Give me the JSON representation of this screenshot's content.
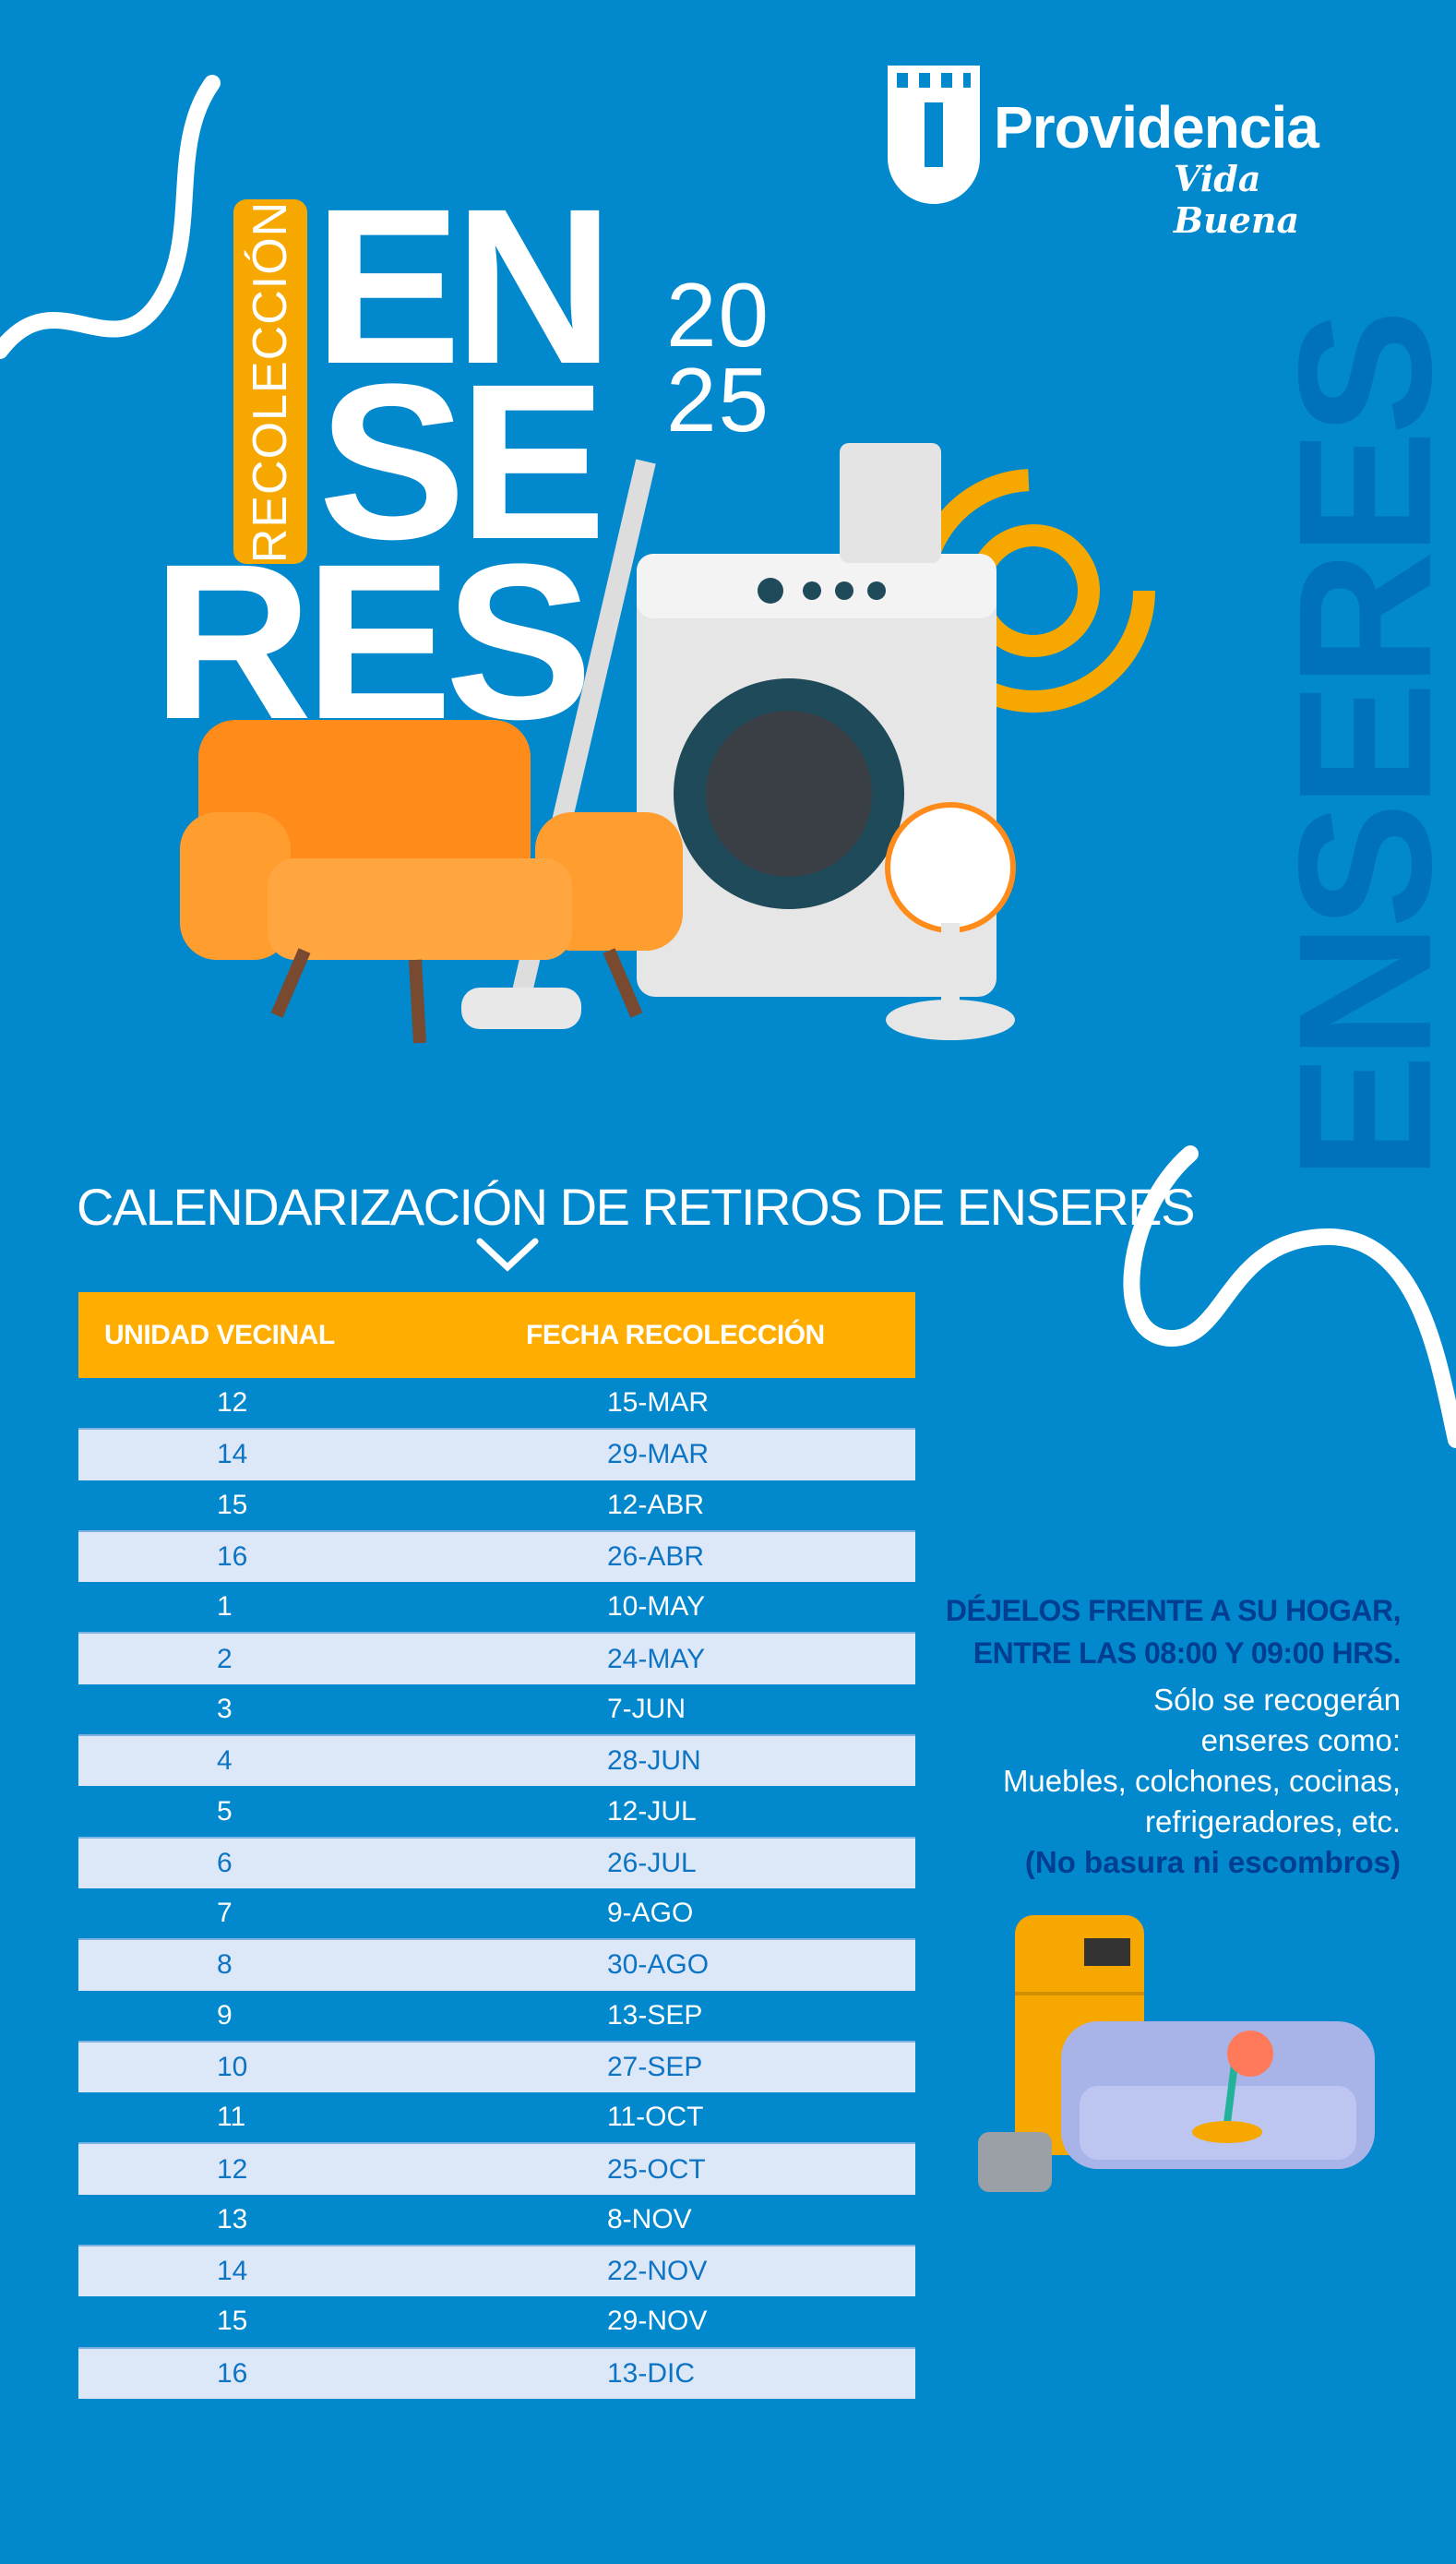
{
  "brand": {
    "name": "Providencia",
    "tagline": "Vida Buena"
  },
  "hero": {
    "label": "RECOLECCIÓN",
    "title_lines": [
      "EN",
      "SE",
      "RES"
    ],
    "year_lines": [
      "20",
      "25"
    ],
    "side_word": "ENSERES"
  },
  "colors": {
    "background": "#0288cc",
    "header": "#ffad00",
    "alt_row": "#dce8f7",
    "dark_text": "#003e92",
    "accent_orange": "#f6a800"
  },
  "section_title": "CALENDARIZACIÓN DE RETIROS DE ENSERES",
  "table": {
    "headers": [
      "UNIDAD VECINAL",
      "FECHA RECOLECCIÓN"
    ],
    "rows": [
      [
        "12",
        "15-MAR"
      ],
      [
        "14",
        "29-MAR"
      ],
      [
        "15",
        "12-ABR"
      ],
      [
        "16",
        "26-ABR"
      ],
      [
        "1",
        "10-MAY"
      ],
      [
        "2",
        "24-MAY"
      ],
      [
        "3",
        "7-JUN"
      ],
      [
        "4",
        "28-JUN"
      ],
      [
        "5",
        "12-JUL"
      ],
      [
        "6",
        "26-JUL"
      ],
      [
        "7",
        "9-AGO"
      ],
      [
        "8",
        "30-AGO"
      ],
      [
        "9",
        "13-SEP"
      ],
      [
        "10",
        "27-SEP"
      ],
      [
        "11",
        "11-OCT"
      ],
      [
        "12",
        "25-OCT"
      ],
      [
        "13",
        "8-NOV"
      ],
      [
        "14",
        "22-NOV"
      ],
      [
        "15",
        "29-NOV"
      ],
      [
        "16",
        "13-DIC"
      ]
    ]
  },
  "info": {
    "instruction_lines": [
      "DÉJELOS FRENTE A SU HOGAR,",
      "ENTRE LAS 08:00 Y 09:00 HRS."
    ],
    "detail_lines": [
      "Sólo se recogerán",
      "enseres como:",
      "Muebles, colchones, cocinas,",
      "refrigeradores, etc."
    ],
    "note": "(No basura ni escombros)"
  }
}
